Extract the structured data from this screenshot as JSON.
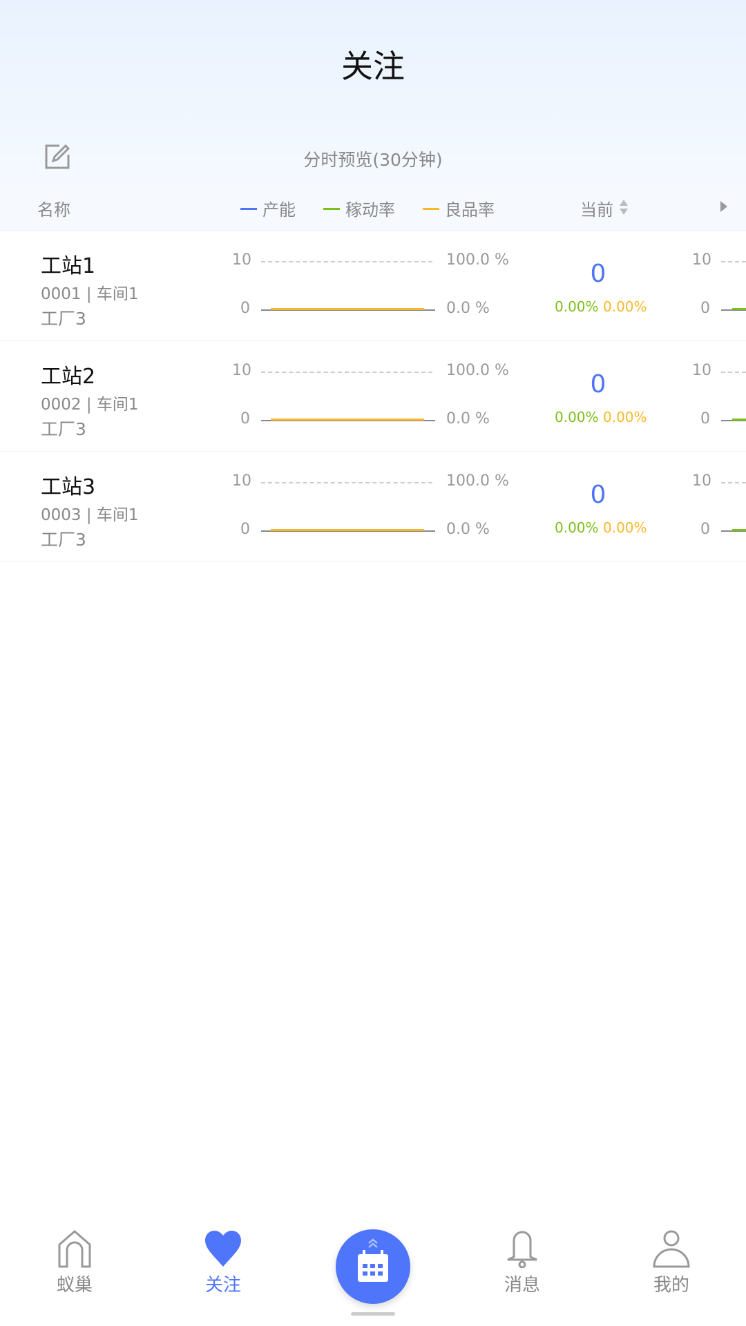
{
  "header": {
    "title": "关注",
    "toolbar_label": "分时预览(30分钟)"
  },
  "table": {
    "columns": {
      "name": "名称",
      "current": "当前"
    },
    "legend": [
      {
        "label": "产能",
        "color": "#4e74f5"
      },
      {
        "label": "稼动率",
        "color": "#7cbf1a"
      },
      {
        "label": "良品率",
        "color": "#f6b82a"
      }
    ],
    "rows": [
      {
        "name": "工站1",
        "code": "0001 | 车间1",
        "factory": "工厂3",
        "y_max": "10",
        "y_min": "0",
        "r_max": "100.0 %",
        "r_min": "0.0 %",
        "current": "0",
        "utilization": "0.00%",
        "yield": "0.00%",
        "next_y_max": "10",
        "next_y_min": "0"
      },
      {
        "name": "工站2",
        "code": "0002 | 车间1",
        "factory": "工厂3",
        "y_max": "10",
        "y_min": "0",
        "r_max": "100.0 %",
        "r_min": "0.0 %",
        "current": "0",
        "utilization": "0.00%",
        "yield": "0.00%",
        "next_y_max": "10",
        "next_y_min": "0"
      },
      {
        "name": "工站3",
        "code": "0003 | 车间1",
        "factory": "工厂3",
        "y_max": "10",
        "y_min": "0",
        "r_max": "100.0 %",
        "r_min": "0.0 %",
        "current": "0",
        "utilization": "0.00%",
        "yield": "0.00%",
        "next_y_max": "10",
        "next_y_min": "0"
      }
    ]
  },
  "nav": {
    "items": [
      {
        "label": "蚁巢",
        "icon": "home-icon"
      },
      {
        "label": "关注",
        "icon": "heart-icon",
        "active": true
      },
      {
        "label": "",
        "icon": "calendar-icon"
      },
      {
        "label": "消息",
        "icon": "bell-icon"
      },
      {
        "label": "我的",
        "icon": "user-icon"
      }
    ],
    "active_color": "#4f75fb"
  }
}
